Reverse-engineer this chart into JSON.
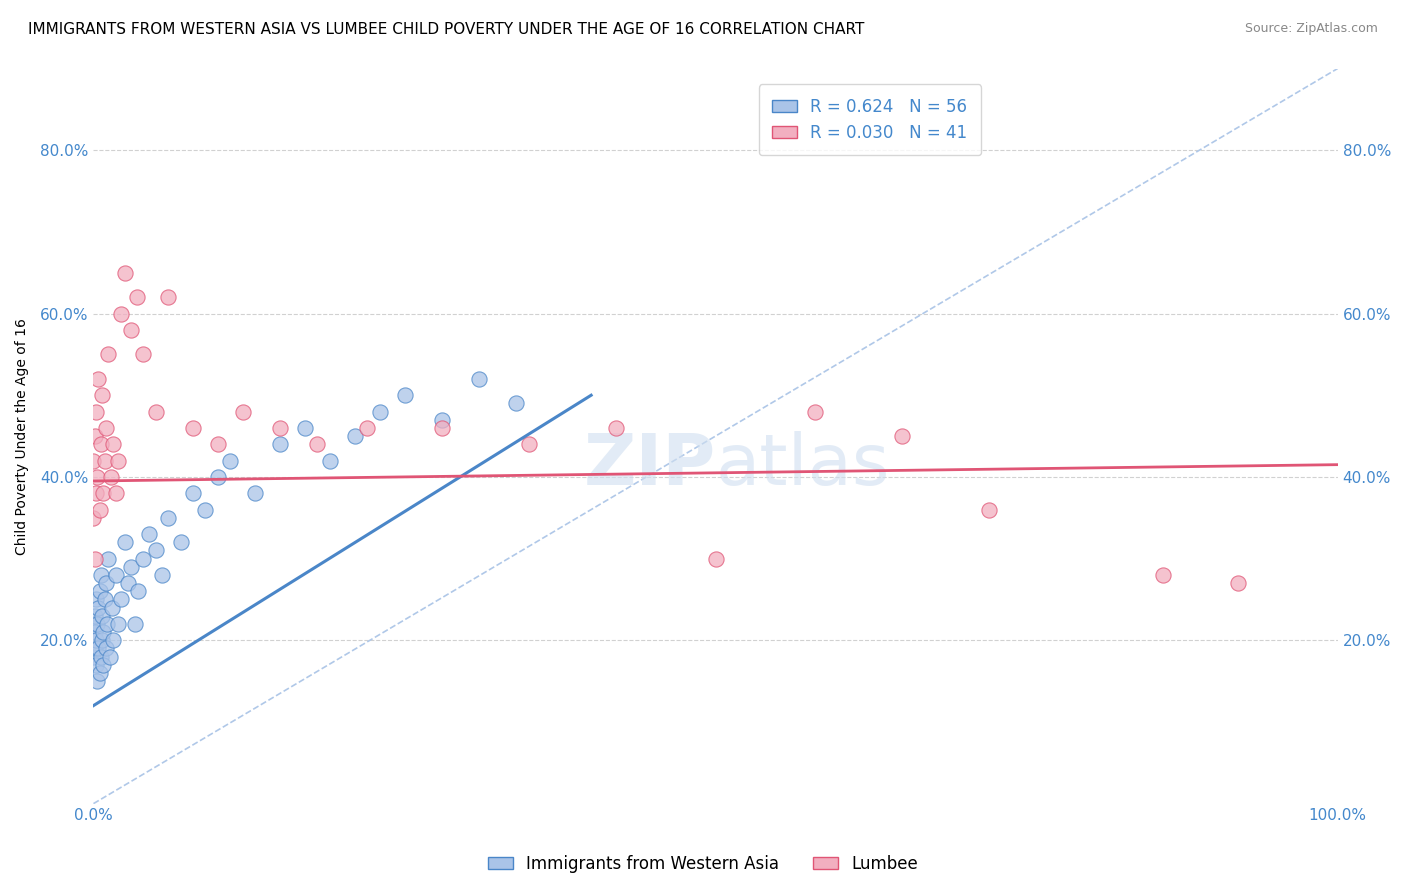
{
  "title": "IMMIGRANTS FROM WESTERN ASIA VS LUMBEE CHILD POVERTY UNDER THE AGE OF 16 CORRELATION CHART",
  "source": "Source: ZipAtlas.com",
  "ylabel": "Child Poverty Under the Age of 16",
  "xlim": [
    0.0,
    1.0
  ],
  "ylim": [
    0.0,
    0.9
  ],
  "xtick_positions": [
    0.0,
    1.0
  ],
  "xtick_labels": [
    "0.0%",
    "100.0%"
  ],
  "ytick_positions": [
    0.2,
    0.4,
    0.6,
    0.8
  ],
  "ytick_labels": [
    "20.0%",
    "40.0%",
    "60.0%",
    "80.0%"
  ],
  "blue_R": 0.624,
  "blue_N": 56,
  "pink_R": 0.03,
  "pink_N": 41,
  "blue_color": "#aac4e8",
  "pink_color": "#f2afc0",
  "blue_line_color": "#4a86c8",
  "pink_line_color": "#e05575",
  "diag_line_color": "#b0c8e8",
  "legend_blue_label": "Immigrants from Western Asia",
  "legend_pink_label": "Lumbee",
  "blue_scatter_x": [
    0.0,
    0.0,
    0.001,
    0.001,
    0.001,
    0.002,
    0.002,
    0.002,
    0.003,
    0.003,
    0.004,
    0.004,
    0.005,
    0.005,
    0.006,
    0.006,
    0.007,
    0.007,
    0.008,
    0.008,
    0.009,
    0.01,
    0.01,
    0.011,
    0.012,
    0.013,
    0.015,
    0.016,
    0.018,
    0.02,
    0.022,
    0.025,
    0.028,
    0.03,
    0.033,
    0.036,
    0.04,
    0.045,
    0.05,
    0.055,
    0.06,
    0.07,
    0.08,
    0.09,
    0.1,
    0.11,
    0.13,
    0.15,
    0.17,
    0.19,
    0.21,
    0.23,
    0.25,
    0.28,
    0.31,
    0.34
  ],
  "blue_scatter_y": [
    0.18,
    0.22,
    0.19,
    0.21,
    0.23,
    0.17,
    0.2,
    0.25,
    0.22,
    0.15,
    0.19,
    0.24,
    0.16,
    0.26,
    0.18,
    0.28,
    0.2,
    0.23,
    0.21,
    0.17,
    0.25,
    0.19,
    0.27,
    0.22,
    0.3,
    0.18,
    0.24,
    0.2,
    0.28,
    0.22,
    0.25,
    0.32,
    0.27,
    0.29,
    0.22,
    0.26,
    0.3,
    0.33,
    0.31,
    0.28,
    0.35,
    0.32,
    0.38,
    0.36,
    0.4,
    0.42,
    0.38,
    0.44,
    0.46,
    0.42,
    0.45,
    0.48,
    0.5,
    0.47,
    0.52,
    0.49
  ],
  "pink_scatter_x": [
    0.0,
    0.0,
    0.001,
    0.001,
    0.002,
    0.002,
    0.003,
    0.004,
    0.005,
    0.006,
    0.007,
    0.008,
    0.009,
    0.01,
    0.012,
    0.014,
    0.016,
    0.018,
    0.02,
    0.022,
    0.025,
    0.03,
    0.035,
    0.04,
    0.05,
    0.06,
    0.08,
    0.1,
    0.12,
    0.15,
    0.18,
    0.22,
    0.28,
    0.35,
    0.42,
    0.5,
    0.58,
    0.65,
    0.72,
    0.86,
    0.92
  ],
  "pink_scatter_y": [
    0.35,
    0.42,
    0.3,
    0.45,
    0.38,
    0.48,
    0.4,
    0.52,
    0.36,
    0.44,
    0.5,
    0.38,
    0.42,
    0.46,
    0.55,
    0.4,
    0.44,
    0.38,
    0.42,
    0.6,
    0.65,
    0.58,
    0.62,
    0.55,
    0.48,
    0.62,
    0.46,
    0.44,
    0.48,
    0.46,
    0.44,
    0.46,
    0.46,
    0.44,
    0.46,
    0.3,
    0.48,
    0.45,
    0.36,
    0.28,
    0.27
  ],
  "blue_line_x": [
    0.0,
    0.4
  ],
  "blue_line_y": [
    0.12,
    0.5
  ],
  "pink_line_x": [
    0.0,
    1.0
  ],
  "pink_line_y": [
    0.395,
    0.415
  ],
  "background_color": "#ffffff",
  "title_fontsize": 11,
  "axis_label_fontsize": 10,
  "tick_fontsize": 11,
  "tick_color": "#4488cc",
  "grid_color": "#cccccc",
  "watermark_color": "#d0dff0",
  "watermark_alpha": 0.6
}
